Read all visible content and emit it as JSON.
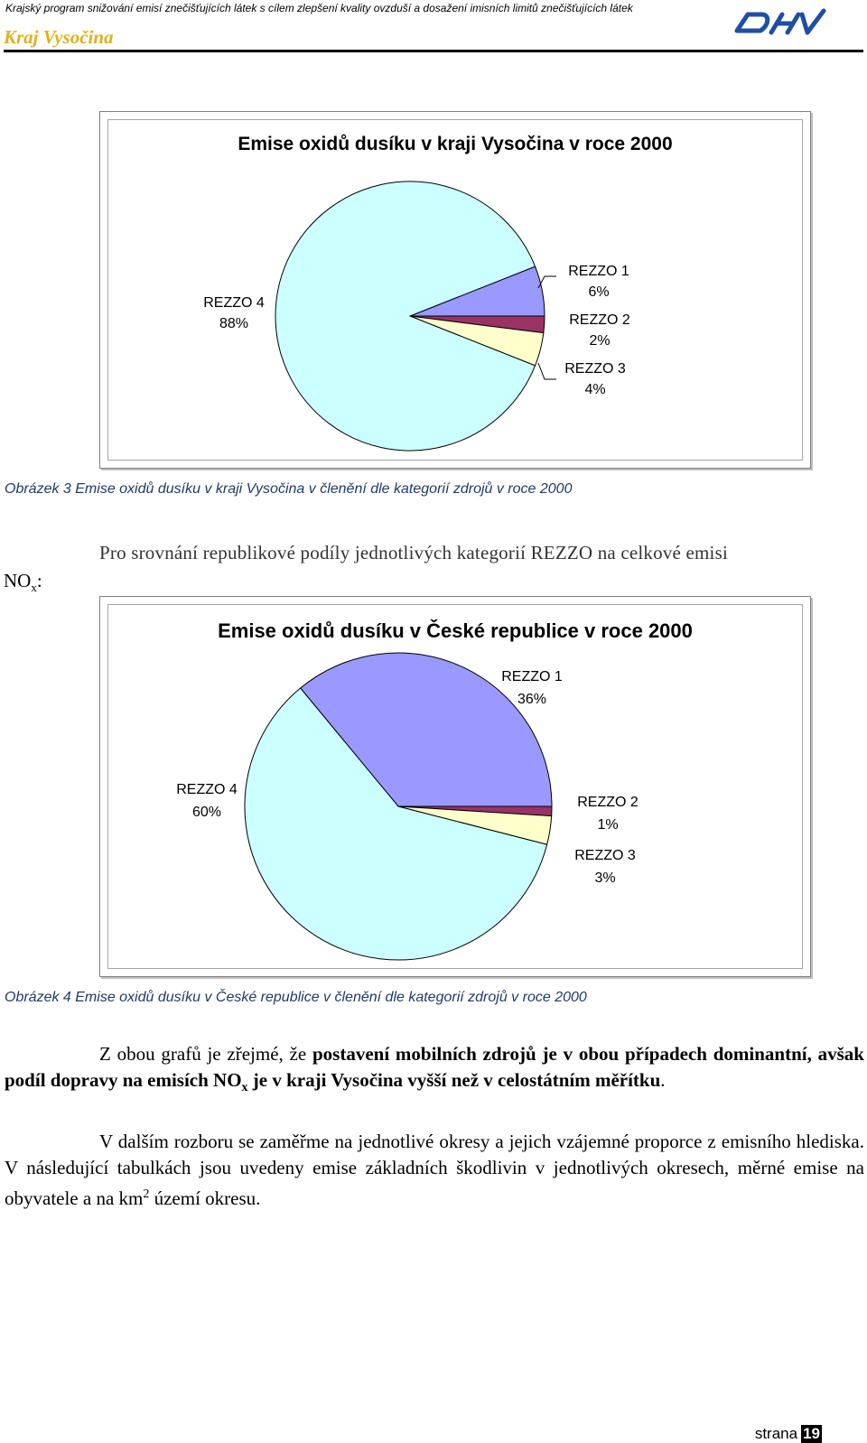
{
  "header": {
    "program_title": "Krajský program snižování emisí znečišťujících látek s cílem zlepšení kvality ovzduší a dosažení imisních limitů znečišťujících látek",
    "region": "Kraj Vysočina",
    "logo_icon": "dhv-logo-icon"
  },
  "chart_data": [
    {
      "type": "pie",
      "title": "Emise oxidů dusíku v kraji Vysočina v roce 2000",
      "categories": [
        "REZZO 1",
        "REZZO 2",
        "REZZO 3",
        "REZZO 4"
      ],
      "values": [
        6,
        2,
        4,
        88
      ],
      "value_labels": [
        "6%",
        "2%",
        "4%",
        "88%"
      ],
      "colors": [
        "#9999ff",
        "#993366",
        "#ffffcc",
        "#ccffff"
      ],
      "legend": "none"
    },
    {
      "type": "pie",
      "title": "Emise oxidů dusíku v České republice v roce 2000",
      "categories": [
        "REZZO 1",
        "REZZO 2",
        "REZZO 3",
        "REZZO 4"
      ],
      "values": [
        36,
        1,
        3,
        60
      ],
      "value_labels": [
        "36%",
        "1%",
        "3%",
        "60%"
      ],
      "colors": [
        "#9999ff",
        "#993366",
        "#ffffcc",
        "#ccffff"
      ],
      "legend": "none"
    }
  ],
  "captions": {
    "fig3": "Obrázek 3 Emise oxidů dusíku v kraji Vysočina v členění dle kategorií zdrojů v roce 2000",
    "fig4": "Obrázek 4 Emise oxidů dusíku v České republice v členění dle kategorií zdrojů v roce 2000"
  },
  "nox": {
    "label": "NO",
    "sub": "x",
    "colon": ":",
    "intro": "Pro srovnání republikové podíly jednotlivých kategorií REZZO na celkové emisi"
  },
  "para1": {
    "t1": "Z obou grafů je zřejmé, že ",
    "b1": "postavení mobilních zdrojů je v obou případech dominantní, avšak podíl dopravy na emisích NO",
    "b1sub": "x",
    "b2": " je v kraji Vysočina vyšší než v celostátním měřítku",
    "t2": "."
  },
  "para2": {
    "t1": "V dalším rozboru se zaměřme na jednotlivé okresy a jejich vzájemné proporce z emisního hlediska. V následující tabulkách jsou uvedeny emise základních škodlivin v jednotlivých okresech, měrné emise na obyvatele a na km",
    "sup": "2",
    "t2": " území okresu."
  },
  "footer": {
    "label": "strana",
    "page": "19"
  }
}
